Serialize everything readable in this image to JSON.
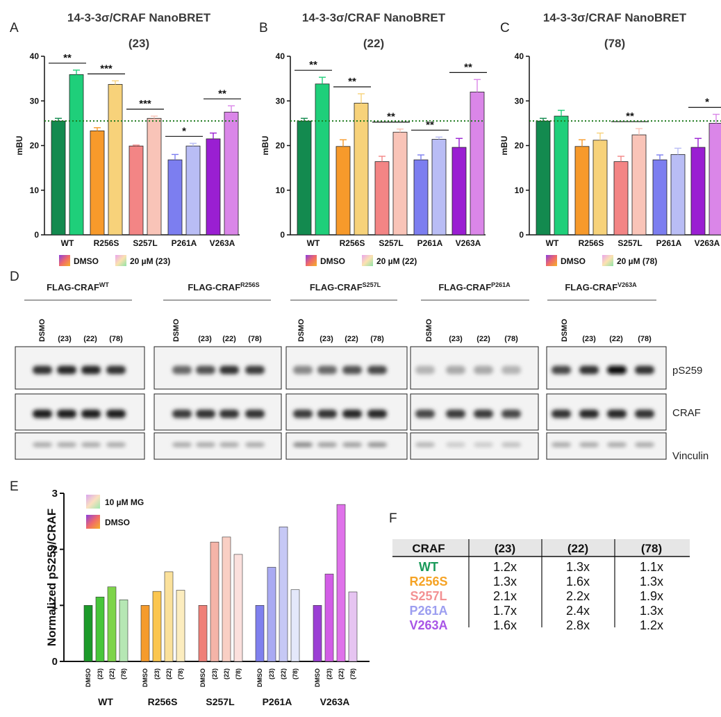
{
  "panel_labels": [
    "A",
    "B",
    "C",
    "D",
    "E",
    "F"
  ],
  "colors": {
    "WT": {
      "dmso": "#138a4f",
      "cpd": "#1fcf7a"
    },
    "R256S": {
      "dmso": "#f79a2b",
      "cpd": "#f7d27a"
    },
    "S257L": {
      "dmso": "#f38585",
      "cpd": "#f9c4b8"
    },
    "P261A": {
      "dmso": "#7c7ef0",
      "cpd": "#b9bdf5"
    },
    "V263A": {
      "dmso": "#9a1fd2",
      "cpd": "#da86e8"
    },
    "reference_line": "#1d7a1d",
    "table_labels": [
      "#1a9a5a",
      "#f5a325",
      "#f39193",
      "#9c9ef0",
      "#a855e6"
    ]
  },
  "chart_data": [
    {
      "type": "bar",
      "panel": "A",
      "title": "14-3-3σ/CRAF NanoBRET",
      "subtitle": "(23)",
      "ylabel": "mBU",
      "ylim": [
        0,
        40
      ],
      "yticks": [
        "0",
        "10",
        "20",
        "30",
        "40"
      ],
      "categories": [
        "WT",
        "R256S",
        "S257L",
        "P261A",
        "V263A"
      ],
      "series": [
        {
          "name": "DMSO",
          "values": [
            25.5,
            23.3,
            19.9,
            16.8,
            21.5
          ],
          "errors": [
            0.6,
            0.7,
            0.2,
            1.2,
            1.3
          ]
        },
        {
          "name": "20 µM (23)",
          "values": [
            35.9,
            33.7,
            26.1,
            19.9,
            27.5
          ],
          "errors": [
            1.0,
            0.8,
            0.5,
            0.6,
            1.4
          ]
        }
      ],
      "reference_line": 25.5,
      "significance": [
        "**",
        "***",
        "***",
        "*",
        "**"
      ],
      "legend": [
        "DMSO",
        "20 µM (23)"
      ]
    },
    {
      "type": "bar",
      "panel": "B",
      "title": "14-3-3σ/CRAF NanoBRET",
      "subtitle": "(22)",
      "ylabel": "mBU",
      "ylim": [
        0,
        40
      ],
      "yticks": [
        "0",
        "10",
        "20",
        "30",
        "40"
      ],
      "categories": [
        "WT",
        "R256S",
        "S257L",
        "P261A",
        "V263A"
      ],
      "series": [
        {
          "name": "DMSO",
          "values": [
            25.5,
            19.8,
            16.4,
            16.8,
            19.6
          ],
          "errors": [
            0.6,
            1.5,
            1.2,
            1.1,
            2.0
          ]
        },
        {
          "name": "20 µM (22)",
          "values": [
            33.8,
            29.5,
            23.0,
            21.4,
            32.0
          ],
          "errors": [
            1.5,
            2.1,
            0.7,
            0.5,
            2.8
          ]
        }
      ],
      "reference_line": 25.5,
      "significance": [
        "**",
        "**",
        "**",
        "**",
        "**"
      ],
      "legend": [
        "DMSO",
        "20 µM (22)"
      ]
    },
    {
      "type": "bar",
      "panel": "C",
      "title": "14-3-3σ/CRAF NanoBRET",
      "subtitle": "(78)",
      "ylabel": "mBU",
      "ylim": [
        0,
        40
      ],
      "yticks": [
        "0",
        "10",
        "20",
        "30",
        "40"
      ],
      "categories": [
        "WT",
        "R256S",
        "S257L",
        "P261A",
        "V263A"
      ],
      "series": [
        {
          "name": "DMSO",
          "values": [
            25.5,
            19.8,
            16.4,
            16.8,
            19.6
          ],
          "errors": [
            0.6,
            1.5,
            1.2,
            1.1,
            2.0
          ]
        },
        {
          "name": "20 µM (78)",
          "values": [
            26.6,
            21.2,
            22.4,
            18.0,
            25.0
          ],
          "errors": [
            1.3,
            1.6,
            1.4,
            1.4,
            2.0
          ]
        }
      ],
      "reference_line": 25.5,
      "significance": [
        "",
        "",
        "**",
        "",
        "*"
      ],
      "legend": [
        "DMSO",
        "20 µM (78)"
      ]
    },
    {
      "type": "bar",
      "panel": "E",
      "ylabel": "Normalized pS259/CRAF",
      "ylim": [
        0,
        3
      ],
      "yticks": [
        "0",
        "1",
        "2",
        "3"
      ],
      "categories": [
        "WT",
        "R256S",
        "S257L",
        "P261A",
        "V263A"
      ],
      "lanes": [
        "DMSO",
        "(23)",
        "(22)",
        "(78)"
      ],
      "values": {
        "WT": [
          1.0,
          1.15,
          1.33,
          1.1
        ],
        "R256S": [
          1.0,
          1.25,
          1.6,
          1.27
        ],
        "S257L": [
          1.0,
          2.13,
          2.22,
          1.91
        ],
        "P261A": [
          1.0,
          1.68,
          2.4,
          1.28
        ],
        "V263A": [
          1.0,
          1.56,
          2.8,
          1.24
        ]
      },
      "legend": [
        "10 µM MG",
        "DMSO"
      ]
    }
  ],
  "blot": {
    "groups": [
      {
        "title": "FLAG-CRAF",
        "superscript": "WT"
      },
      {
        "title": "FLAG-CRAF",
        "superscript": "R256S"
      },
      {
        "title": "FLAG-CRAF",
        "superscript": "S257L"
      },
      {
        "title": "FLAG-CRAF",
        "superscript": "P261A"
      },
      {
        "title": "FLAG-CRAF",
        "superscript": "V263A"
      }
    ],
    "lanes": [
      "DSMO",
      "(23)",
      "(22)",
      "(78)"
    ],
    "rows": [
      "pS259",
      "CRAF",
      "Vinculin"
    ],
    "intensity": {
      "pS259": [
        [
          0.85,
          0.9,
          0.9,
          0.85
        ],
        [
          0.6,
          0.7,
          0.85,
          0.8
        ],
        [
          0.45,
          0.6,
          0.7,
          0.75
        ],
        [
          0.25,
          0.3,
          0.3,
          0.25
        ],
        [
          0.75,
          0.85,
          1.0,
          0.85
        ]
      ],
      "CRAF": [
        [
          0.95,
          0.95,
          0.95,
          0.95
        ],
        [
          0.8,
          0.85,
          0.85,
          0.85
        ],
        [
          0.8,
          0.85,
          0.9,
          0.9
        ],
        [
          0.75,
          0.8,
          0.8,
          0.75
        ],
        [
          0.85,
          0.9,
          0.9,
          0.85
        ]
      ],
      "Vinculin": [
        [
          0.3,
          0.3,
          0.3,
          0.3
        ],
        [
          0.3,
          0.3,
          0.3,
          0.3
        ],
        [
          0.45,
          0.35,
          0.35,
          0.4
        ],
        [
          0.25,
          0.15,
          0.15,
          0.2
        ],
        [
          0.3,
          0.3,
          0.3,
          0.3
        ]
      ]
    }
  },
  "table": {
    "headers": [
      "CRAF",
      "(23)",
      "(22)",
      "(78)"
    ],
    "rows": [
      {
        "label": "WT",
        "values": [
          "1.2x",
          "1.3x",
          "1.1x"
        ]
      },
      {
        "label": "R256S",
        "values": [
          "1.3x",
          "1.6x",
          "1.3x"
        ]
      },
      {
        "label": "S257L",
        "values": [
          "2.1x",
          "2.2x",
          "1.9x"
        ]
      },
      {
        "label": "P261A",
        "values": [
          "1.7x",
          "2.4x",
          "1.3x"
        ]
      },
      {
        "label": "V263A",
        "values": [
          "1.6x",
          "2.8x",
          "1.2x"
        ]
      }
    ]
  }
}
